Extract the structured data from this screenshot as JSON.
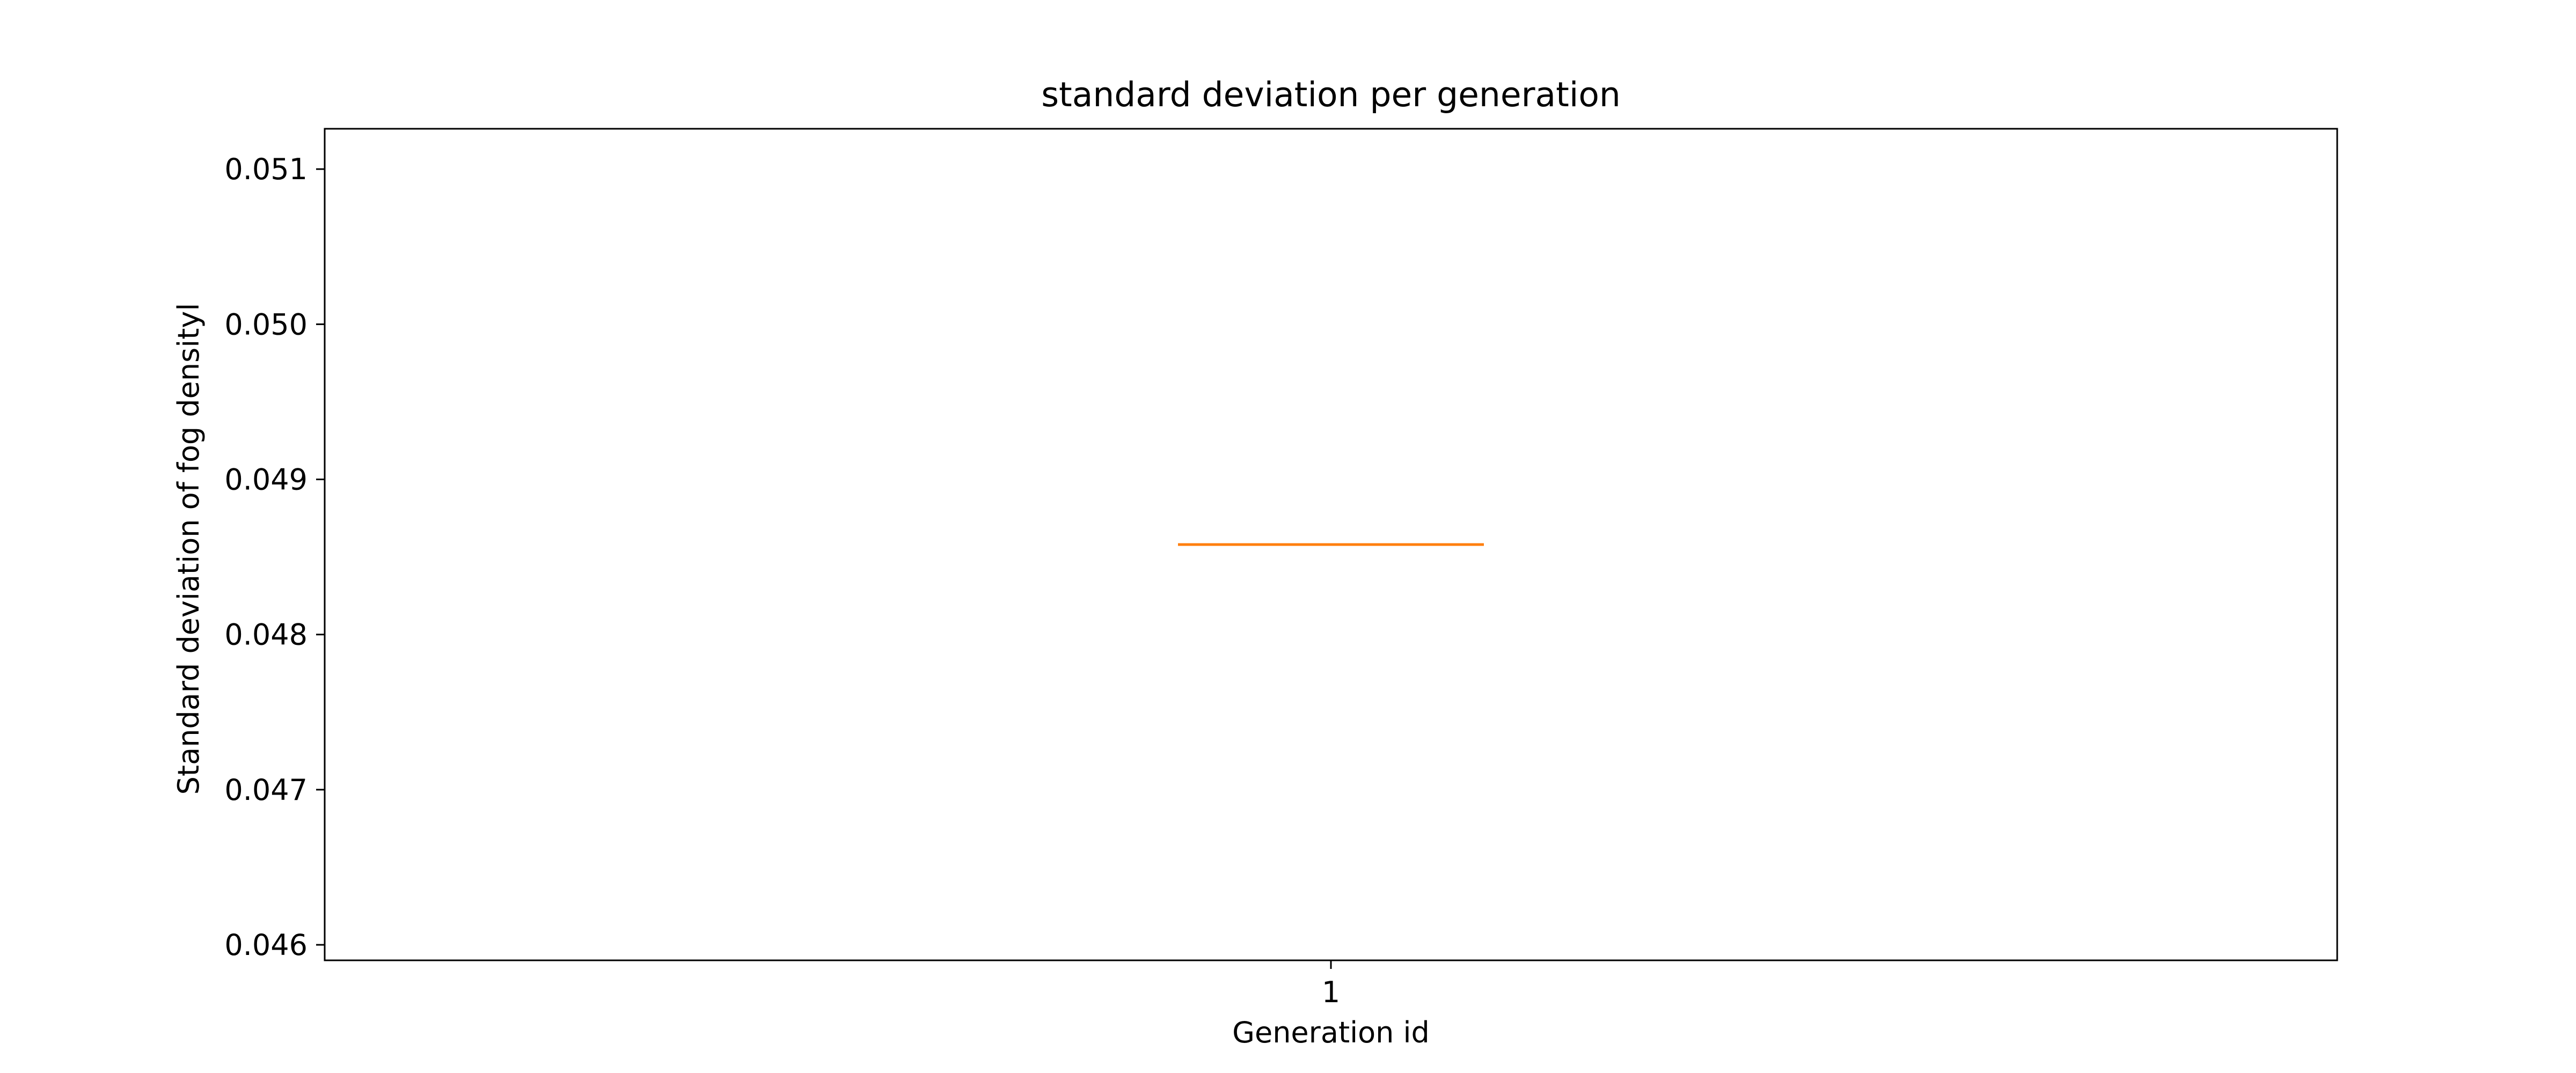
{
  "chart_data": {
    "type": "box",
    "title": "standard deviation per generation",
    "xlabel": "Generation id",
    "ylabel": "Standard deviation of fog densityl",
    "categories": [
      "1"
    ],
    "series": [
      {
        "values": [
          0.04858
        ],
        "median": [
          0.04858
        ],
        "q1": [
          0.04858
        ],
        "q3": [
          0.04858
        ],
        "whisker_low": [
          0.04858
        ],
        "whisker_high": [
          0.04858
        ]
      }
    ],
    "ylim": [
      0.0459,
      0.05126
    ],
    "yticks": [
      0.046,
      0.047,
      0.048,
      0.049,
      0.05,
      0.051
    ],
    "ytick_labels": [
      "0.046",
      "0.047",
      "0.048",
      "0.049",
      "0.050",
      "0.051"
    ],
    "grid": false,
    "colors": {
      "median": "#ff7f0e",
      "axes": "#000000",
      "background": "#ffffff"
    }
  }
}
